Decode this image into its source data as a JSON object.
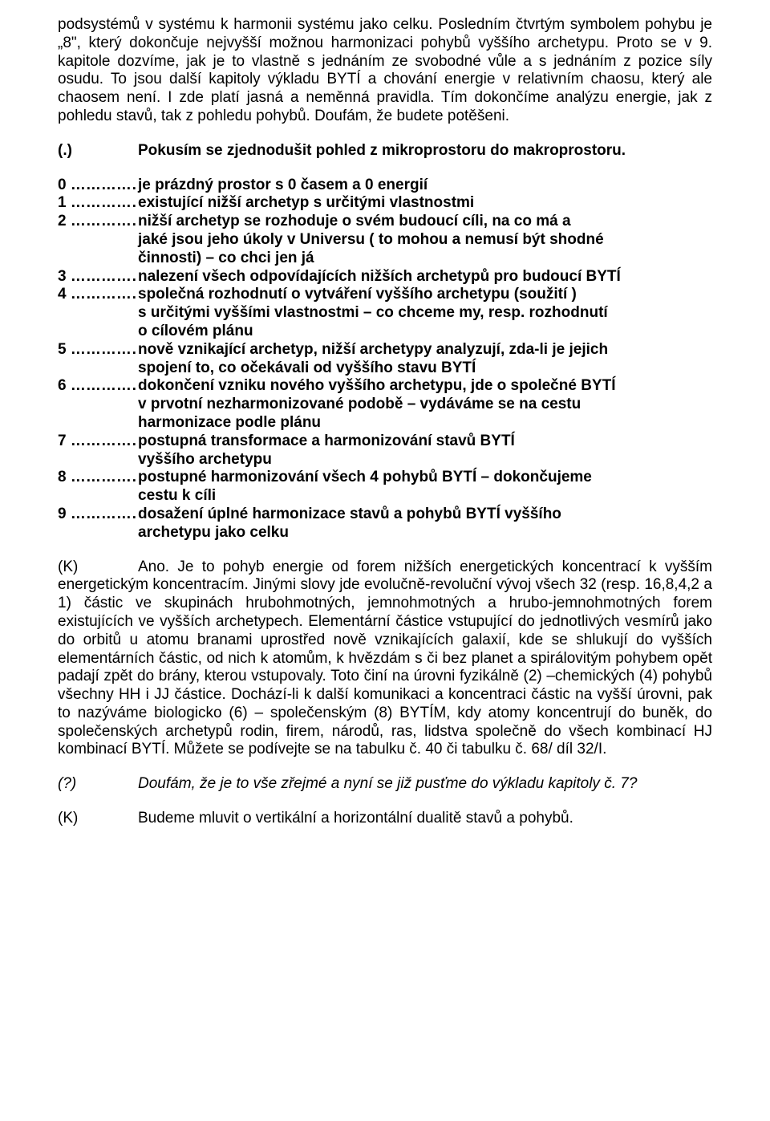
{
  "intro": "podsystémů v systému k harmonii systému jako celku. Posledním čtvrtým symbolem pohybu je „8\", který dokončuje nejvyšší možnou harmonizaci pohybů vyššího archetypu. Proto se v 9. kapitole dozvíme, jak je to vlastně s jednáním ze svobodné vůle a s jednáním z pozice síly osudu. To jsou další kapitoly výkladu BYTÍ a chování energie v relativním chaosu, který ale chaosem není. I zde platí jasná a neměnná pravidla. Tím dokončíme analýzu energie, jak z pohledu stavů, tak z pohledu pohybů. Doufám, že budete potěšeni.",
  "dialogue1": {
    "speaker": "(.) ",
    "text": "Pokusím se zjednodušit pohled z mikroprostoru do makroprostoru."
  },
  "list": [
    {
      "n": "0 ……………",
      "t1": "je prázdný prostor s 0 časem a 0 energií"
    },
    {
      "n": "1 ……………",
      "t1": "existující nižší archetyp s určitými vlastnostmi"
    },
    {
      "n": "2 ……………",
      "t1": "nižší archetyp se rozhoduje o svém budoucí cíli, na co má a",
      "t2": "jaké jsou jeho úkoly v Universu ( to mohou a nemusí být shodné",
      "t3": "činnosti) – co chci jen já"
    },
    {
      "n": "3 ……………",
      "t1": "nalezení všech odpovídajících nižších archetypů pro budoucí BYTÍ"
    },
    {
      "n": "4 ……………",
      "t1": "společná rozhodnutí o vytváření vyššího archetypu (soužití )",
      "t2": "s určitými vyššími vlastnostmi – co chceme my, resp. rozhodnutí",
      "t3": "o cílovém plánu"
    },
    {
      "n": "5 ……………",
      "t1": "nově vznikající archetyp, nižší archetypy analyzují, zda-li je jejich",
      "t2": "spojení to, co očekávali od vyššího stavu BYTÍ"
    },
    {
      "n": "6 ……………",
      "t1": "dokončení vzniku nového vyššího archetypu, jde o společné BYTÍ",
      "t2": "v prvotní nezharmonizované podobě – vydáváme se na cestu",
      "t3": "harmonizace podle plánu"
    },
    {
      "n": "7 ……………",
      "t1": "postupná transformace a harmonizování stavů BYTÍ",
      "t2": "vyššího archetypu"
    },
    {
      "n": "8 ……………",
      "t1": "postupné harmonizování všech 4 pohybů BYTÍ – dokončujeme",
      "t2": "cestu k cíli"
    },
    {
      "n": "9 ……………",
      "t1": "dosažení úplné harmonizace stavů a pohybů BYTÍ vyššího",
      "t2": "archetypu jako celku"
    }
  ],
  "kpara": {
    "label": "(K)",
    "text": "Ano. Je to pohyb energie od forem nižších energetických koncentrací k vyšším energetickým koncentracím. Jinými slovy jde evolučně-revoluční vývoj všech 32 (resp. 16,8,4,2 a 1) částic ve skupinách hrubohmotných, jemnohmotných a hrubo-jemnohmotných forem existujících ve vyšších archetypech. Elementární částice vstupující do jednotlivých vesmírů jako do orbitů u atomu branami uprostřed nově vznikajících galaxií, kde se shlukují do vyšších elementárních částic, od nich k atomům, k hvězdám s či bez planet a spirálovitým pohybem opět padají zpět do brány, kterou vstupovaly. Toto činí na úrovni fyzikálně (2) –chemických (4) pohybů všechny HH i JJ částice. Dochází-li k další komunikaci a koncentraci částic na vyšší úrovni, pak to nazýváme biologicko (6) – společenským (8) BYTÍM, kdy atomy koncentrují do buněk, do společenských archetypů rodin, firem, národů, ras, lidstva společně do všech kombinací HJ kombinací BYTÍ. Můžete se podívejte se na tabulku č.  40 či tabulku č. 68/ díl 32/I."
  },
  "qline": {
    "speaker": "(?)",
    "text": "Doufám, že je to vše zřejmé a nyní se již pusťme do výkladu kapitoly č. 7?"
  },
  "kline": {
    "speaker": "(K)",
    "text": "Budeme mluvit o vertikální a horizontální dualitě stavů a pohybů."
  }
}
